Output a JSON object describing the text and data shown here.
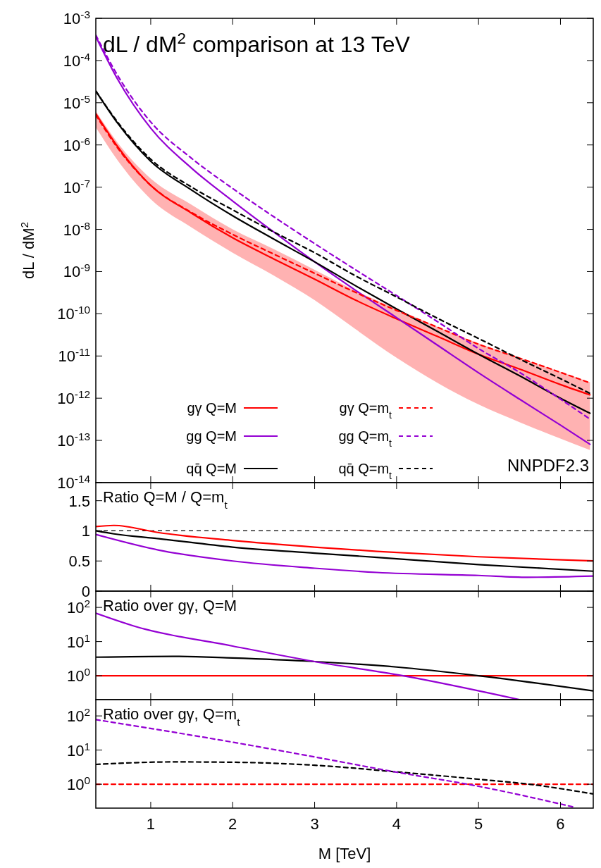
{
  "chart_data": [
    {
      "type": "line",
      "title": "dL / dM$^{2}$ comparison at 13 TeV",
      "ylabel": "dL / dM$^{2}$",
      "log": true,
      "legend": "bottom left",
      "tick_labels": "y",
      "annotations": [
        "NNPDF2.3"
      ],
      "xlim": [
        0.33,
        6.4
      ],
      "xticks": [
        1,
        2,
        3,
        4,
        5,
        6
      ],
      "ylim": [
        1e-14,
        0.001
      ],
      "yticks": [
        {
          "value": 1e-14,
          "label": "10$^{-14}$"
        },
        {
          "value": 1e-13,
          "label": "10$^{-13}$"
        },
        {
          "value": 1e-12,
          "label": "10$^{-12}$"
        },
        {
          "value": 1e-11,
          "label": "10$^{-11}$"
        },
        {
          "value": 1e-10,
          "label": "10$^{-10}$"
        },
        {
          "value": 1e-09,
          "label": "10$^{-9}$"
        },
        {
          "value": 1e-08,
          "label": "10$^{-8}$"
        },
        {
          "value": 1e-07,
          "label": "10$^{-7}$"
        },
        {
          "value": 1e-06,
          "label": "10$^{-6}$"
        },
        {
          "value": 1e-05,
          "label": "10$^{-5}$"
        },
        {
          "value": 0.0001,
          "label": "10$^{-4}$"
        },
        {
          "value": 0.001,
          "label": "10$^{-3}$"
        }
      ],
      "series": [
        {
          "name": "gγ Q=M",
          "color": "#ff0000",
          "line_style": "solid",
          "x": [
            0.33,
            0.6,
            1,
            1.5,
            2,
            2.5,
            3,
            3.5,
            4,
            4.5,
            5,
            5.5,
            6,
            6.36
          ],
          "values": [
            5.5e-06,
            8.9e-07,
            1.1e-07,
            2.4e-08,
            6.3e-09,
            2e-09,
            6.6e-10,
            2.1e-10,
            7.6e-11,
            2.9e-11,
            1.1e-11,
            4.9e-12,
            2.1e-12,
            1.2e-12
          ],
          "lower": [
            2.6e-06,
            4.2e-07,
            5.2e-08,
            1.1e-08,
            2.8e-09,
            8.1e-10,
            2.1e-10,
            4.3e-11,
            9.1e-12,
            2.3e-12,
            7.1e-13,
            2.7e-13,
            1.1e-13,
            5.9e-14
          ],
          "upper": [
            6.3e-06,
            1.1e-06,
            1.6e-07,
            3.8e-08,
            1e-08,
            3.4e-09,
            1.1e-09,
            3.5e-10,
            1.3e-10,
            4.9e-11,
            2e-11,
            9.1e-12,
            4.2e-12,
            2.4e-12
          ]
        },
        {
          "name": "gg Q=M",
          "color": "#9400d3",
          "line_style": "solid",
          "x": [
            0.33,
            0.6,
            1,
            1.5,
            2,
            2.5,
            3,
            3.5,
            4,
            4.5,
            5,
            5.5,
            6,
            6.36
          ],
          "values": [
            0.00037,
            3.5e-05,
            2.5e-06,
            2.8e-07,
            4.7e-08,
            8.7e-09,
            1.7e-09,
            3.6e-10,
            8.1e-11,
            1.8e-11,
            4e-12,
            9.5e-13,
            2.3e-13,
            8.1e-14
          ]
        },
        {
          "name": "qq̄ Q=M",
          "color": "#000000",
          "line_style": "solid",
          "x": [
            0.33,
            0.6,
            1,
            1.5,
            2,
            2.5,
            3,
            3.5,
            4,
            4.5,
            5,
            5.5,
            6,
            6.36
          ],
          "values": [
            1.9e-05,
            3.2e-06,
            4.1e-07,
            8.5e-08,
            2.1e-08,
            5.9e-09,
            1.7e-09,
            4.6e-10,
            1.3e-10,
            3.8e-11,
            1.1e-11,
            3.4e-12,
            1e-12,
            4.4e-13
          ]
        },
        {
          "name": "gγ Q=m$_{t}$",
          "color": "#ff0000",
          "line_style": "dashed",
          "x": [
            0.33,
            0.6,
            1,
            1.5,
            2,
            2.5,
            3,
            3.5,
            4,
            4.5,
            5,
            5.5,
            6,
            6.36
          ],
          "values": [
            5.1e-06,
            8.3e-07,
            1.1e-07,
            2.5e-08,
            7.6e-09,
            2.6e-09,
            9.1e-10,
            3.2e-10,
            1.2e-10,
            4.8e-11,
            1.9e-11,
            8.9e-12,
            4.1e-12,
            2.3e-12
          ]
        },
        {
          "name": "gg Q=m$_{t}$",
          "color": "#9400d3",
          "line_style": "dashed",
          "x": [
            0.33,
            0.6,
            1,
            1.5,
            2,
            2.5,
            3,
            3.5,
            4,
            4.5,
            5,
            5.5,
            6,
            6.36
          ],
          "values": [
            0.0004,
            4.3e-05,
            3.5e-06,
            4.8e-07,
            9.3e-08,
            2e-08,
            4.6e-09,
            1.1e-09,
            2.7e-10,
            6.5e-11,
            1.5e-11,
            4.1e-12,
            9.5e-13,
            3.2e-13
          ]
        },
        {
          "name": "qq̄ Q=m$_{t}$",
          "color": "#000000",
          "line_style": "dashed",
          "x": [
            0.33,
            0.6,
            1,
            1.5,
            2,
            2.5,
            3,
            3.5,
            4,
            4.5,
            5,
            5.5,
            6,
            6.36
          ],
          "values": [
            1.9e-05,
            3.4e-06,
            4.6e-07,
            1e-07,
            2.9e-08,
            8.7e-09,
            2.8e-09,
            7.9e-10,
            2.5e-10,
            7.8e-11,
            2.6e-11,
            8.5e-12,
            2.9e-12,
            1.3e-12
          ]
        }
      ]
    },
    {
      "type": "line",
      "title": "Ratio Q=M / Q=m$_{t}$",
      "tick_labels": "y",
      "xlim": [
        0.33,
        6.4
      ],
      "xticks": [
        1,
        2,
        3,
        4,
        5,
        6
      ],
      "ylim": [
        0,
        1.8
      ],
      "yticks": [
        0,
        0.5,
        1,
        1.5
      ],
      "ref_lines": [
        {
          "axis": "y",
          "value": 1,
          "color": "#000000",
          "line_style": "dashed"
        }
      ],
      "series": [
        {
          "color": "#ff0000",
          "line_style": "solid",
          "x": [
            0.33,
            0.55,
            1.1,
            2,
            3,
            3.76,
            5,
            6.4
          ],
          "values": [
            1.07,
            1.09,
            0.97,
            0.84,
            0.73,
            0.66,
            0.57,
            0.5
          ]
        },
        {
          "color": "#000000",
          "line_style": "solid",
          "x": [
            0.33,
            0.55,
            1.1,
            2,
            3,
            3.76,
            5,
            6.4
          ],
          "values": [
            1.0,
            0.95,
            0.87,
            0.73,
            0.63,
            0.56,
            0.44,
            0.33
          ]
        },
        {
          "color": "#9400d3",
          "line_style": "solid",
          "x": [
            0.33,
            1.1,
            2,
            3,
            3.76,
            5,
            5.6,
            6.4
          ],
          "values": [
            0.94,
            0.68,
            0.5,
            0.38,
            0.31,
            0.26,
            0.23,
            0.25
          ]
        }
      ]
    },
    {
      "type": "line",
      "title": "Ratio over gγ, Q=M",
      "log": true,
      "tick_labels": "y",
      "xlim": [
        0.33,
        6.4
      ],
      "xticks": [
        1,
        2,
        3,
        4,
        5,
        6
      ],
      "ylim": [
        0.2,
        300
      ],
      "yticks": [
        {
          "value": 1,
          "label": "10$^{0}$"
        },
        {
          "value": 10,
          "label": "10$^{1}$"
        },
        {
          "value": 100,
          "label": "10$^{2}$"
        }
      ],
      "series": [
        {
          "color": "#ff0000",
          "line_style": "solid",
          "x": [
            0.33,
            6.4
          ],
          "values": [
            1,
            1
          ]
        },
        {
          "color": "#000000",
          "line_style": "solid",
          "x": [
            0.33,
            1.27,
            2,
            3,
            4,
            5,
            6.4
          ],
          "values": [
            3.5,
            3.7,
            3.3,
            2.6,
            1.8,
            1.0,
            0.36
          ]
        },
        {
          "color": "#9400d3",
          "line_style": "solid",
          "x": [
            0.33,
            0.83,
            2,
            3,
            4.08,
            5.5
          ],
          "values": [
            68,
            27,
            7.4,
            2.6,
            1.0,
            0.2
          ]
        }
      ]
    },
    {
      "type": "line",
      "title": "Ratio over gγ, Q=m$_{t}$",
      "xlabel": "M [TeV]",
      "log": true,
      "xlim": [
        0.33,
        6.4
      ],
      "xticks": [
        1,
        2,
        3,
        4,
        5,
        6
      ],
      "ylim": [
        0.2,
        300
      ],
      "yticks": [
        {
          "value": 1,
          "label": "10$^{0}$"
        },
        {
          "value": 10,
          "label": "10$^{1}$"
        },
        {
          "value": 100,
          "label": "10$^{2}$"
        }
      ],
      "series": [
        {
          "color": "#ff0000",
          "line_style": "dashed",
          "x": [
            0.33,
            6.4
          ],
          "values": [
            1,
            1
          ]
        },
        {
          "color": "#000000",
          "line_style": "dashed",
          "x": [
            0.33,
            1.27,
            2,
            3,
            4,
            5,
            5.62,
            6.4
          ],
          "values": [
            3.8,
            4.5,
            4.4,
            3.6,
            2.3,
            1.4,
            1.0,
            0.52
          ]
        },
        {
          "color": "#9400d3",
          "line_style": "dashed",
          "x": [
            0.33,
            2,
            3,
            3.98,
            5,
            6.18
          ],
          "values": [
            78,
            17,
            6.3,
            2.3,
            0.87,
            0.21
          ]
        }
      ]
    }
  ]
}
